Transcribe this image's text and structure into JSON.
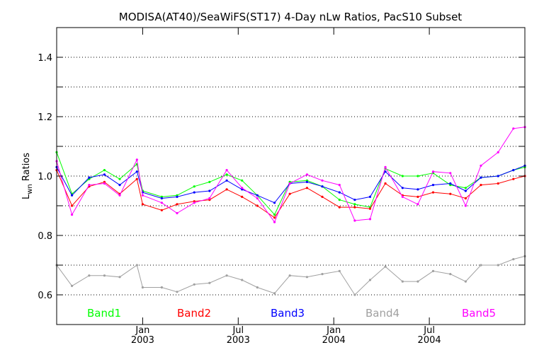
{
  "chart_data": {
    "type": "line",
    "title": "MODISA(AT40)/SeaWiFS(ST17) 4-Day nLw Ratios, PacS10 Subset",
    "ylabel": {
      "base": "L",
      "sub": "wn",
      "rest": " Ratios"
    },
    "ylim": [
      0.5,
      1.5
    ],
    "y_ticks": [
      0.6,
      0.8,
      1.0,
      1.2,
      1.4
    ],
    "y_tick_labels": [
      "0.6",
      "0.8",
      "1.0",
      "1.2",
      "1.4"
    ],
    "y_gridlines": [
      0.6,
      0.7,
      0.8,
      0.9,
      1.0,
      1.1,
      1.2,
      1.3,
      1.4
    ],
    "grid": true,
    "x_unit": "decimal year",
    "xlim": [
      2002.55,
      2005.0
    ],
    "x_ticks": [
      {
        "x": 2003.0,
        "line1": "Jan",
        "line2": "2003"
      },
      {
        "x": 2003.5,
        "line1": "Jul",
        "line2": "2003"
      },
      {
        "x": 2004.0,
        "line1": "Jan",
        "line2": "2004"
      },
      {
        "x": 2004.5,
        "line1": "Jul",
        "line2": "2004"
      }
    ],
    "legend_position": "bottom",
    "x": [
      2002.55,
      2002.63,
      2002.72,
      2002.8,
      2002.88,
      2002.97,
      2003.0,
      2003.1,
      2003.18,
      2003.27,
      2003.35,
      2003.44,
      2003.52,
      2003.6,
      2003.69,
      2003.77,
      2003.86,
      2003.94,
      2004.03,
      2004.11,
      2004.19,
      2004.27,
      2004.36,
      2004.44,
      2004.52,
      2004.61,
      2004.69,
      2004.77,
      2004.86,
      2004.94,
      2005.0
    ],
    "series": [
      {
        "name": "Band1",
        "color": "#00ff00",
        "values": [
          1.08,
          0.94,
          0.99,
          1.02,
          0.99,
          1.04,
          0.95,
          0.93,
          0.935,
          0.965,
          0.98,
          1.005,
          0.985,
          0.935,
          0.87,
          0.98,
          0.985,
          0.965,
          0.92,
          0.905,
          0.895,
          1.025,
          1.0,
          1.0,
          1.01,
          0.97,
          0.96,
          0.995,
          1.0,
          1.02,
          1.03
        ]
      },
      {
        "name": "Band2",
        "color": "#ff0000",
        "values": [
          1.02,
          0.9,
          0.965,
          0.98,
          0.94,
          0.99,
          0.905,
          0.885,
          0.905,
          0.915,
          0.92,
          0.955,
          0.93,
          0.9,
          0.86,
          0.94,
          0.96,
          0.93,
          0.895,
          0.895,
          0.89,
          0.975,
          0.935,
          0.93,
          0.945,
          0.94,
          0.925,
          0.97,
          0.975,
          0.99,
          1.0
        ]
      },
      {
        "name": "Band3",
        "color": "#0000ff",
        "values": [
          1.03,
          0.935,
          0.995,
          1.005,
          0.97,
          1.015,
          0.945,
          0.925,
          0.93,
          0.945,
          0.95,
          0.985,
          0.955,
          0.935,
          0.91,
          0.975,
          0.98,
          0.965,
          0.945,
          0.92,
          0.93,
          1.015,
          0.96,
          0.955,
          0.97,
          0.975,
          0.95,
          0.995,
          1.0,
          1.02,
          1.035
        ]
      },
      {
        "name": "Band4",
        "color": "#a0a0a0",
        "values": [
          0.7,
          0.63,
          0.665,
          0.665,
          0.66,
          0.7,
          0.625,
          0.625,
          0.61,
          0.635,
          0.64,
          0.665,
          0.65,
          0.625,
          0.605,
          0.665,
          0.66,
          0.67,
          0.68,
          0.6,
          0.65,
          0.695,
          0.645,
          0.645,
          0.68,
          0.67,
          0.645,
          0.7,
          0.7,
          0.72,
          0.73
        ]
      },
      {
        "name": "Band5",
        "color": "#ff00ff",
        "values": [
          1.05,
          0.87,
          0.97,
          0.975,
          0.935,
          1.055,
          0.935,
          0.91,
          0.875,
          0.91,
          0.925,
          1.02,
          0.96,
          0.925,
          0.845,
          0.975,
          1.005,
          0.985,
          0.97,
          0.85,
          0.855,
          1.03,
          0.93,
          0.905,
          1.015,
          1.01,
          0.9,
          1.035,
          1.08,
          1.16,
          1.165
        ]
      }
    ]
  }
}
